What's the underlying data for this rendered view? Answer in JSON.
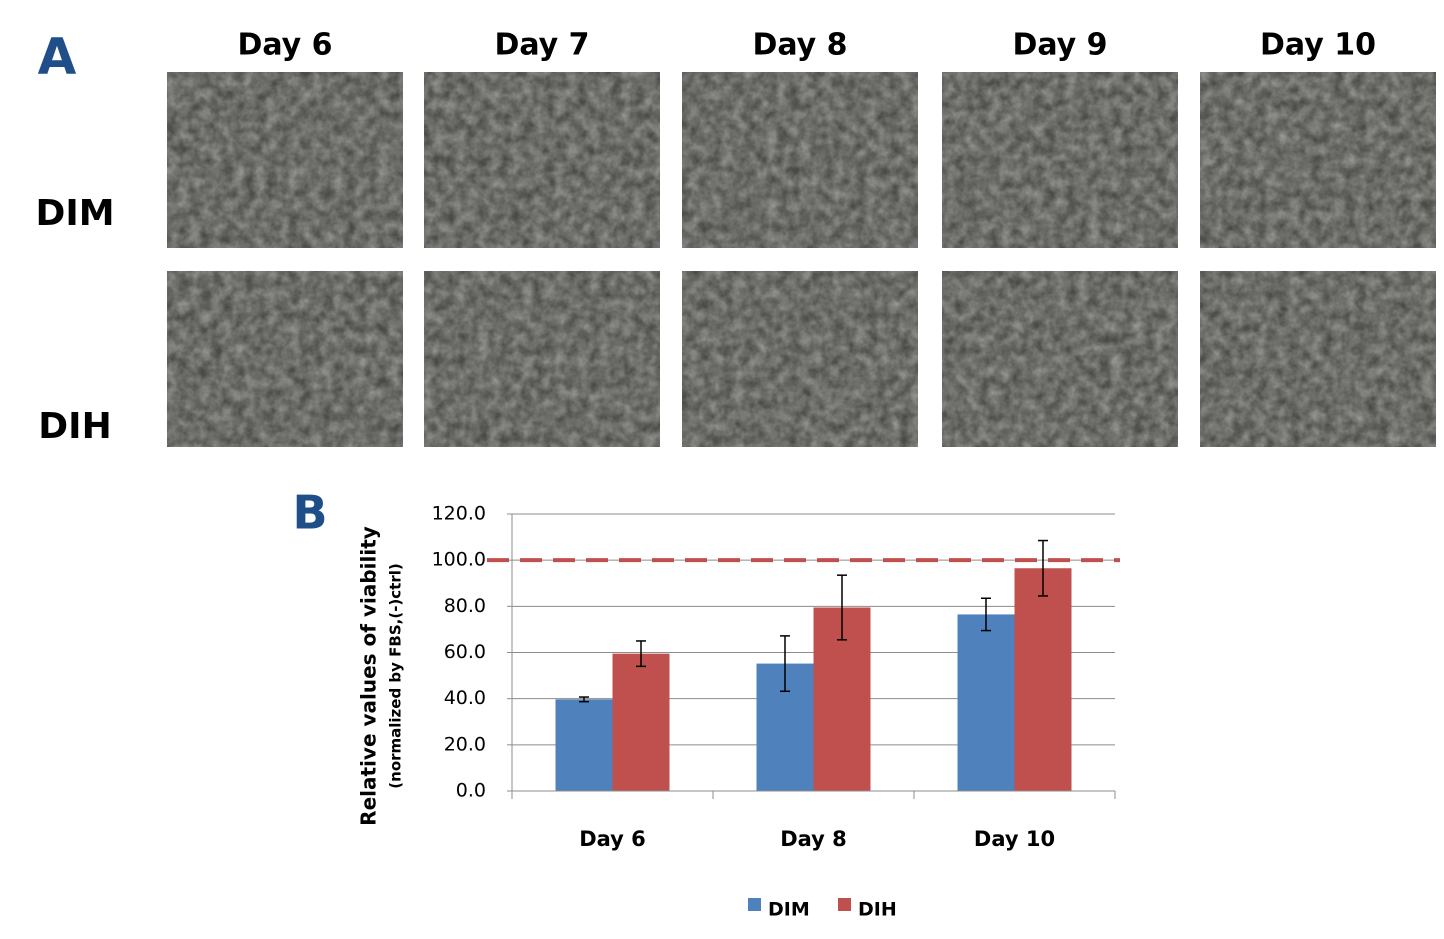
{
  "panel_a": {
    "label": "A",
    "columns": [
      "Day 6",
      "Day 7",
      "Day 8",
      "Day 9",
      "Day 10"
    ],
    "rows": [
      "DIM",
      "DIH"
    ]
  },
  "chart_data": {
    "type": "bar",
    "panel_label": "B",
    "y_label": [
      "Relative values of viability",
      "(normalized by FBS,(-)ctrl)"
    ],
    "categories": [
      "Day 6",
      "Day 8",
      "Day 10"
    ],
    "series": [
      {
        "name": "DIM",
        "color": "#4f81bd",
        "values": [
          39.7,
          55.2,
          76.5
        ],
        "errors": [
          1.0,
          12.0,
          7.0
        ]
      },
      {
        "name": "DIH",
        "color": "#c0504d",
        "values": [
          59.5,
          79.5,
          96.5
        ],
        "errors": [
          5.5,
          14.0,
          12.0
        ]
      }
    ],
    "ylim": [
      0,
      120
    ],
    "yticks": [
      {
        "value": 0,
        "label": "0.0"
      },
      {
        "value": 20,
        "label": "20.0"
      },
      {
        "value": 40,
        "label": "40.0"
      },
      {
        "value": 60,
        "label": "60.0"
      },
      {
        "value": 80,
        "label": "80.0"
      },
      {
        "value": 100,
        "label": "100.0"
      },
      {
        "value": 120,
        "label": "120.0"
      }
    ],
    "grid": true,
    "reference_line": {
      "value": 100,
      "color": "#c0504d"
    }
  }
}
